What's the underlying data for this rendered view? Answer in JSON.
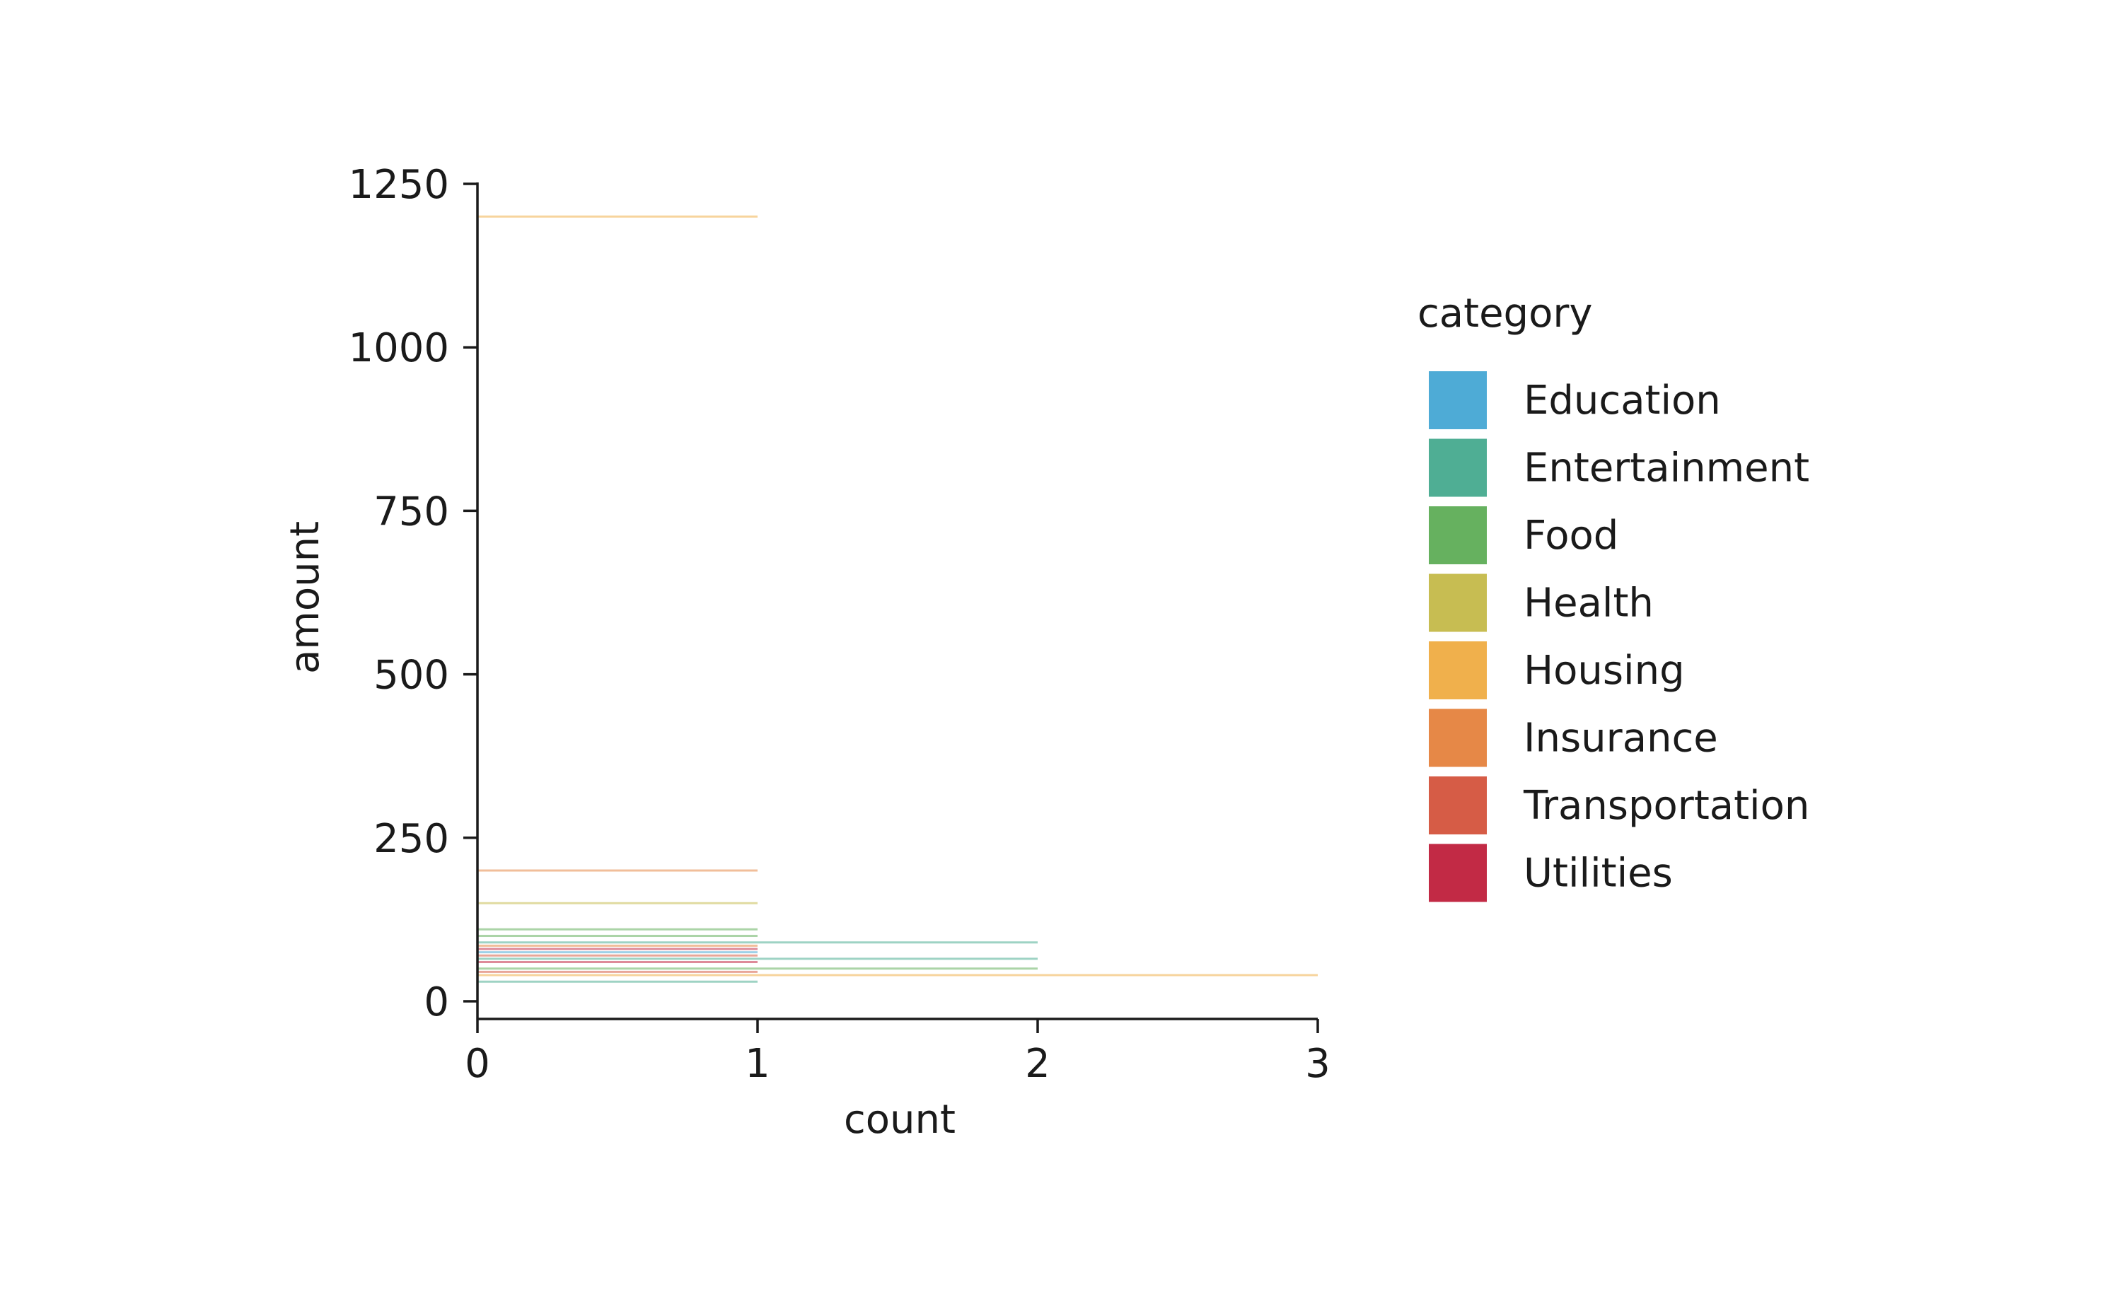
{
  "chart_data": {
    "type": "bar",
    "orientation": "horizontal",
    "title": "",
    "xlabel": "count",
    "ylabel": "amount",
    "xlim": [
      0,
      3
    ],
    "ylim": [
      0,
      1250
    ],
    "xticks": [
      0,
      1,
      2,
      3
    ],
    "yticks": [
      0,
      250,
      500,
      750,
      1000,
      1250
    ],
    "grid": false,
    "legend": {
      "title": "category",
      "placement": "right",
      "entries": [
        {
          "name": "Education",
          "color": "#4eabd6"
        },
        {
          "name": "Entertainment",
          "color": "#4fae94"
        },
        {
          "name": "Food",
          "color": "#66b15f"
        },
        {
          "name": "Health",
          "color": "#c7bd52"
        },
        {
          "name": "Housing",
          "color": "#f0b04c"
        },
        {
          "name": "Insurance",
          "color": "#e68847"
        },
        {
          "name": "Transportation",
          "color": "#d65c46"
        },
        {
          "name": "Utilities",
          "color": "#c22a45"
        }
      ]
    },
    "bars": [
      {
        "category": "Housing",
        "amount": 1200,
        "count": 1
      },
      {
        "category": "Insurance",
        "amount": 200,
        "count": 1
      },
      {
        "category": "Health",
        "amount": 150,
        "count": 1
      },
      {
        "category": "Food",
        "amount": 110,
        "count": 1
      },
      {
        "category": "Food",
        "amount": 100,
        "count": 1
      },
      {
        "category": "Entertainment",
        "amount": 90,
        "count": 2
      },
      {
        "category": "Insurance",
        "amount": 85,
        "count": 1
      },
      {
        "category": "Utilities",
        "amount": 80,
        "count": 1
      },
      {
        "category": "Education",
        "amount": 75,
        "count": 1
      },
      {
        "category": "Transportation",
        "amount": 70,
        "count": 1
      },
      {
        "category": "Entertainment",
        "amount": 65,
        "count": 2
      },
      {
        "category": "Utilities",
        "amount": 60,
        "count": 1
      },
      {
        "category": "Food",
        "amount": 50,
        "count": 2
      },
      {
        "category": "Transportation",
        "amount": 45,
        "count": 1
      },
      {
        "category": "Housing",
        "amount": 40,
        "count": 3
      },
      {
        "category": "Entertainment",
        "amount": 30,
        "count": 1
      }
    ]
  }
}
